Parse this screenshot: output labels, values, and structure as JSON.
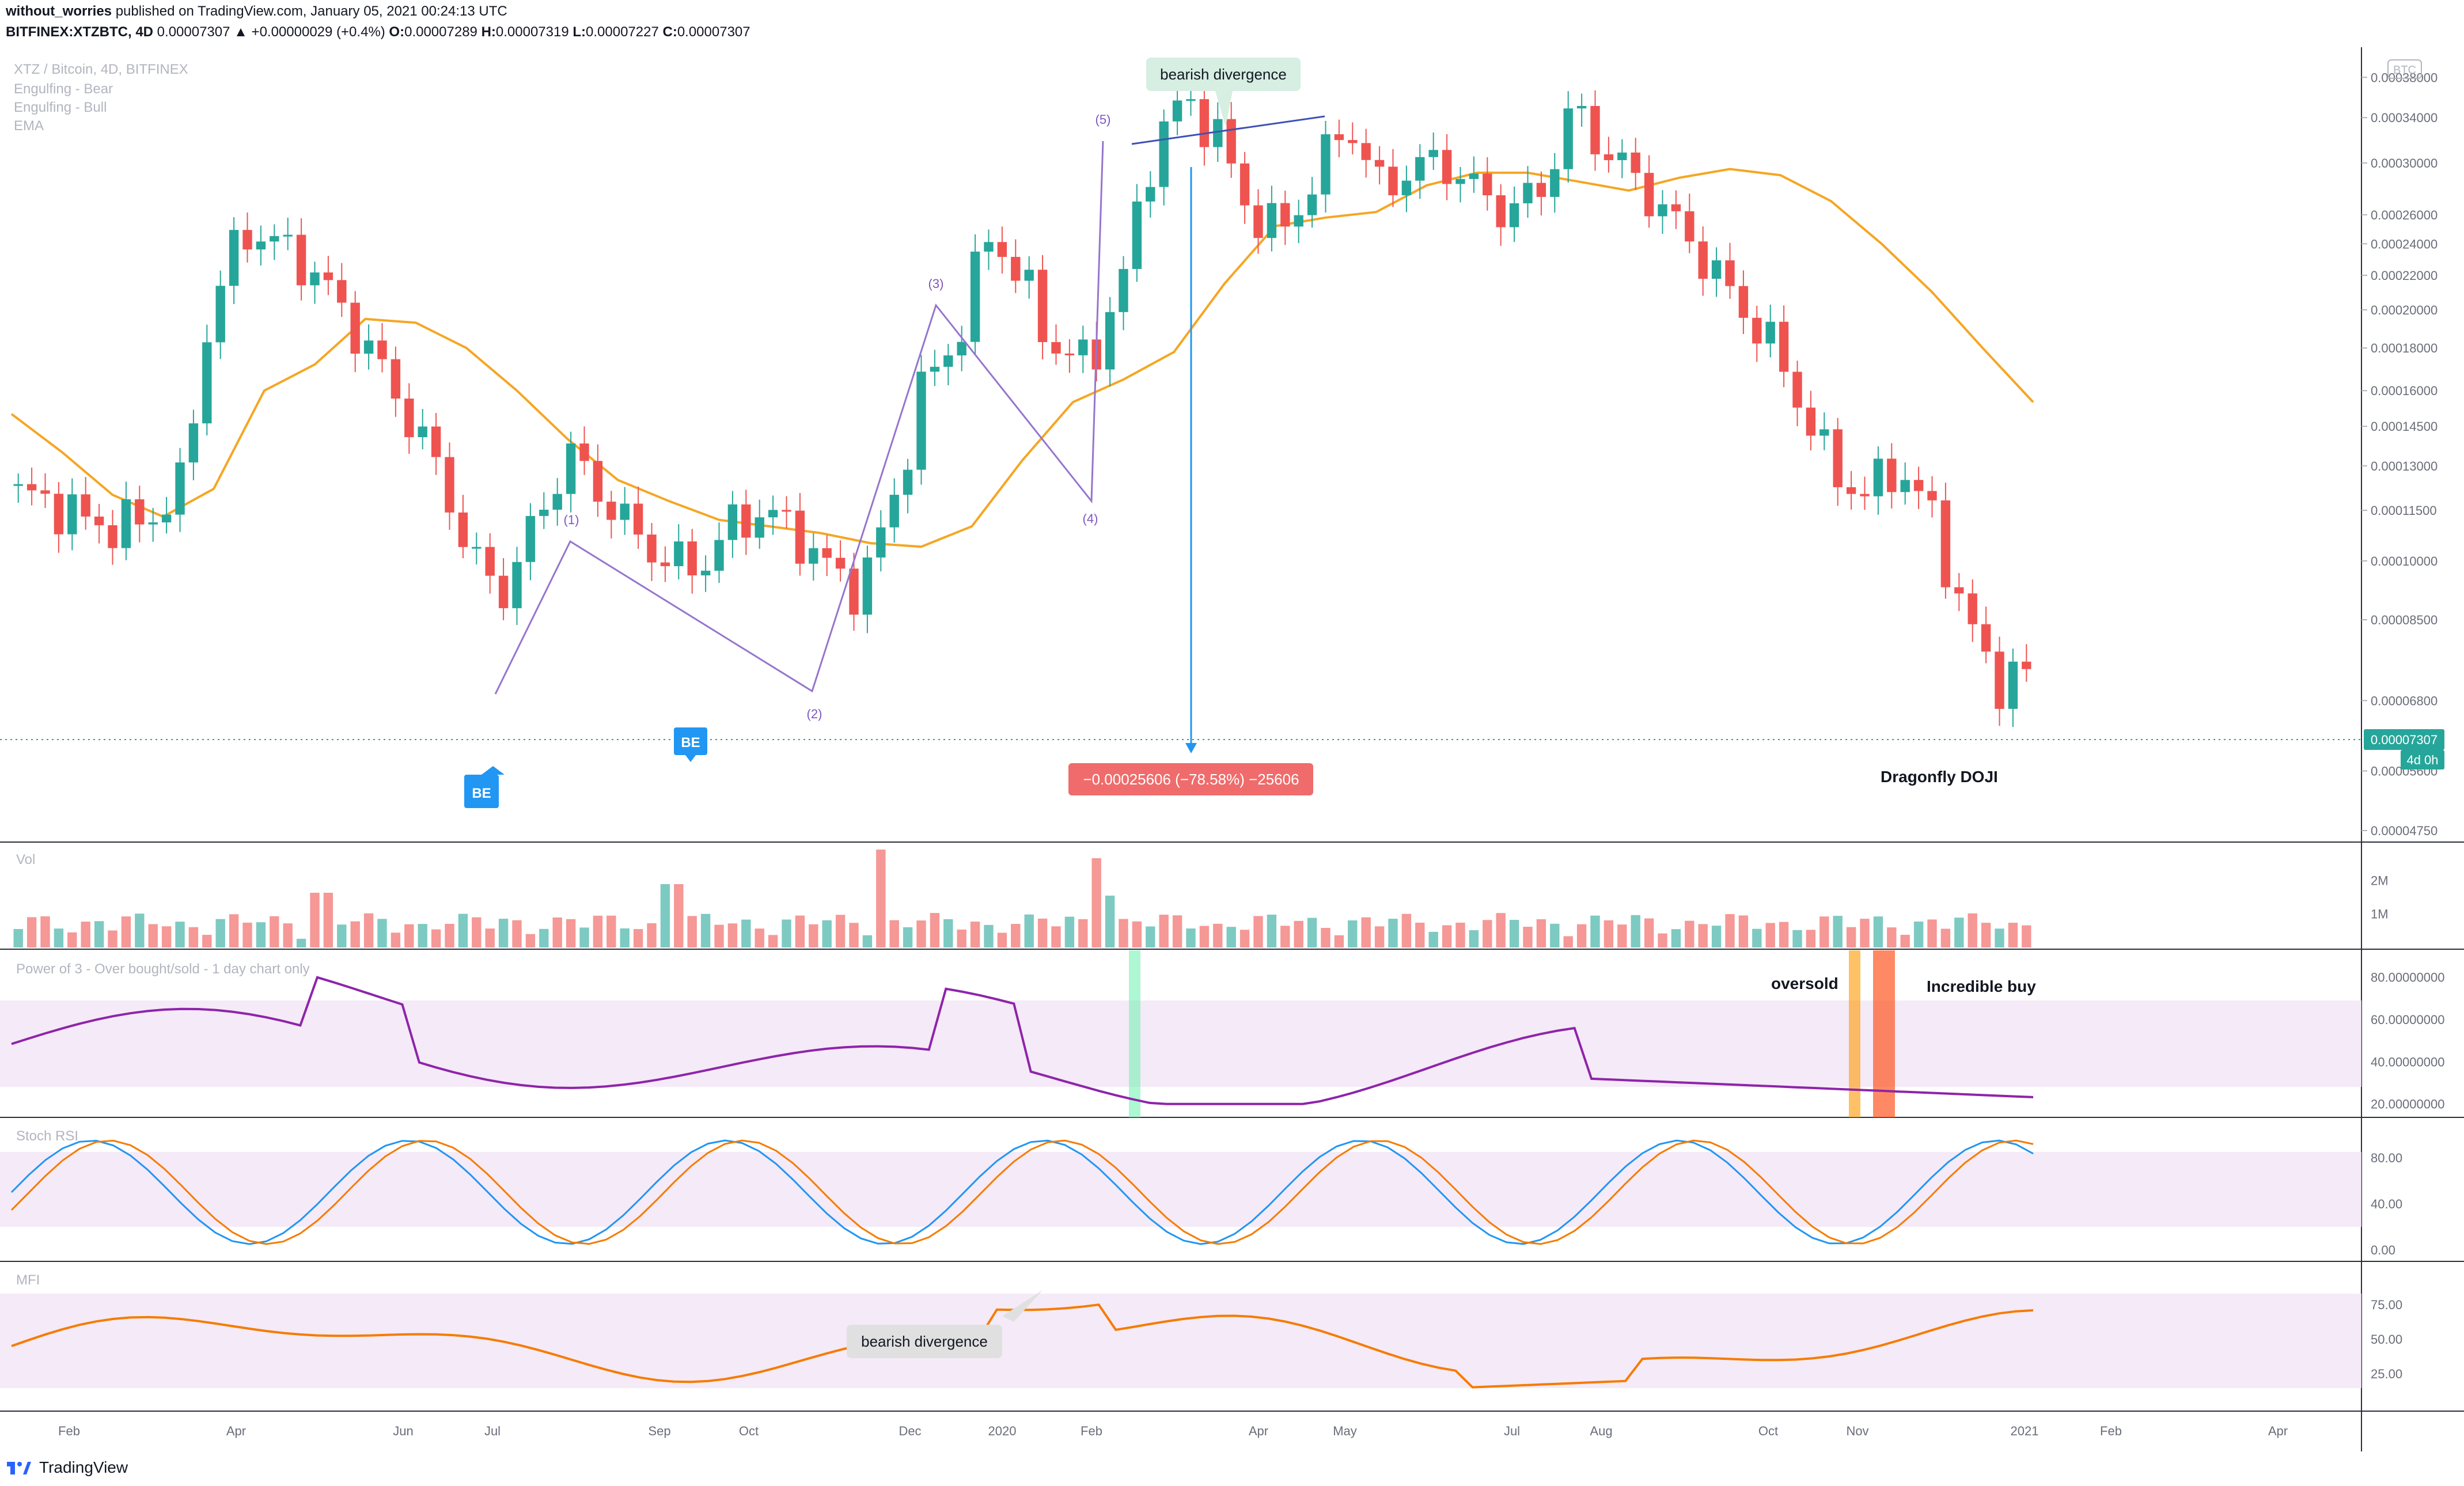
{
  "header": {
    "user": "without_worries",
    "published": "published on TradingView.com, January 05, 2021 00:24:13 UTC",
    "symbol": "BITFINEX:XTZBTC, 4D",
    "change": "0.00007307 ▲ +0.00000029 (+0.4%)",
    "o_label": "O:",
    "o": "0.00007289",
    "h_label": "H:",
    "h": "0.00007319",
    "l_label": "L:",
    "l": "0.00007227",
    "c_label": "C:",
    "c": "0.00007307"
  },
  "legend": {
    "title": "XTZ / Bitcoin, 4D, BITFINEX",
    "items": [
      "Engulfing - Bear",
      "Engulfing - Bull",
      "EMA"
    ]
  },
  "currency_badge": "BTC",
  "price_axis": {
    "ticks": [
      "0.00038000",
      "0.00034000",
      "0.00030000",
      "0.00026000",
      "0.00024000",
      "0.00022000",
      "0.00020000",
      "0.00018000",
      "0.00016000",
      "0.00014500",
      "0.00013000",
      "0.00011500",
      "0.00010000",
      "0.00008500",
      "0.00006800",
      "0.00005600",
      "0.00004750"
    ],
    "last_price": "0.00007307",
    "countdown": "4d 0h"
  },
  "time_axis": [
    "Feb",
    "Apr",
    "Jun",
    "Jul",
    "Sep",
    "Oct",
    "Dec",
    "2020",
    "Feb",
    "Apr",
    "May",
    "Jul",
    "Aug",
    "Oct",
    "Nov",
    "2021",
    "Feb",
    "Apr"
  ],
  "annotations": {
    "bearish_top": "bearish divergence",
    "bearish_mfi": "bearish divergence",
    "measure": "−0.00025606 (−78.58%) −25606",
    "doji": "Dragonfly DOJI",
    "oversold": "oversold",
    "incredible": "Incredible buy",
    "be": "BE",
    "waves": [
      "(1)",
      "(2)",
      "(3)",
      "(4)",
      "(5)"
    ]
  },
  "panes": {
    "vol": {
      "title": "Vol",
      "ticks": [
        "2M",
        "1M"
      ]
    },
    "p3": {
      "title": "Power of 3 - Over bought/sold - 1 day chart only",
      "ticks": [
        "80.00000000",
        "60.00000000",
        "40.00000000",
        "20.00000000"
      ]
    },
    "stoch": {
      "title": "Stoch RSI",
      "ticks": [
        "80.00",
        "40.00",
        "0.00"
      ]
    },
    "mfi": {
      "title": "MFI",
      "ticks": [
        "75.00",
        "50.00",
        "25.00"
      ]
    }
  },
  "colors": {
    "up": "#26a69a",
    "down": "#ef5350",
    "ema": "#f5a623",
    "purple": "#9c27b0",
    "stoch_k": "#2196f3",
    "stoch_d": "#f57c00",
    "mfi": "#f57c00",
    "band": "#f3e5f5"
  },
  "footer": {
    "brand": "TradingView"
  },
  "chart_data": {
    "type": "candlestick",
    "series": [
      {
        "name": "XTZ / Bitcoin",
        "close": [
          0.00012,
          0.000118,
          0.000112,
          0.00011,
          0.000112,
          0.000122,
          0.000205,
          0.00025,
          0.00024,
          0.000225,
          0.0002,
          0.000175,
          0.00015,
          0.000128,
          0.0001,
          9.2e-05,
          0.000112,
          0.000135,
          0.00012,
          0.000108,
          0.0001,
          9.8e-05,
          0.00011,
          0.000115,
          0.000108,
          9.8e-05,
          9.2e-05,
          0.000118,
          0.000165,
          0.000185,
          0.00025,
          0.000215,
          0.00018,
          0.000172,
          0.00021,
          0.00031,
          0.00036,
          0.000325,
          0.000262,
          0.000248,
          0.000285,
          0.00034,
          0.00028,
          0.000295,
          0.000302,
          0.000278,
          0.000262,
          0.000278,
          0.00035,
          0.00031,
          0.000285,
          0.000258,
          0.000232,
          0.000205,
          0.000185,
          0.000155,
          0.000128,
          0.00012,
          0.00013,
          0.000115,
          8.8e-05,
          7.2e-05,
          7.3e-05
        ]
      },
      {
        "name": "EMA",
        "values": [
          0.00015,
          0.000135,
          0.00012,
          0.000113,
          0.000122,
          0.00016,
          0.000172,
          0.000195,
          0.000193,
          0.00018,
          0.00016,
          0.00014,
          0.000125,
          0.000118,
          0.000112,
          0.00011,
          0.000108,
          0.000105,
          0.000104,
          0.00011,
          0.000132,
          0.000155,
          0.000165,
          0.000178,
          0.000215,
          0.000252,
          0.000258,
          0.000262,
          0.000282,
          0.000292,
          0.000292,
          0.000285,
          0.000278,
          0.000288,
          0.000295,
          0.00029,
          0.00027,
          0.00024,
          0.00021,
          0.00018,
          0.000155
        ]
      }
    ],
    "ylim": [
      4.75e-05,
      0.0004
    ]
  }
}
